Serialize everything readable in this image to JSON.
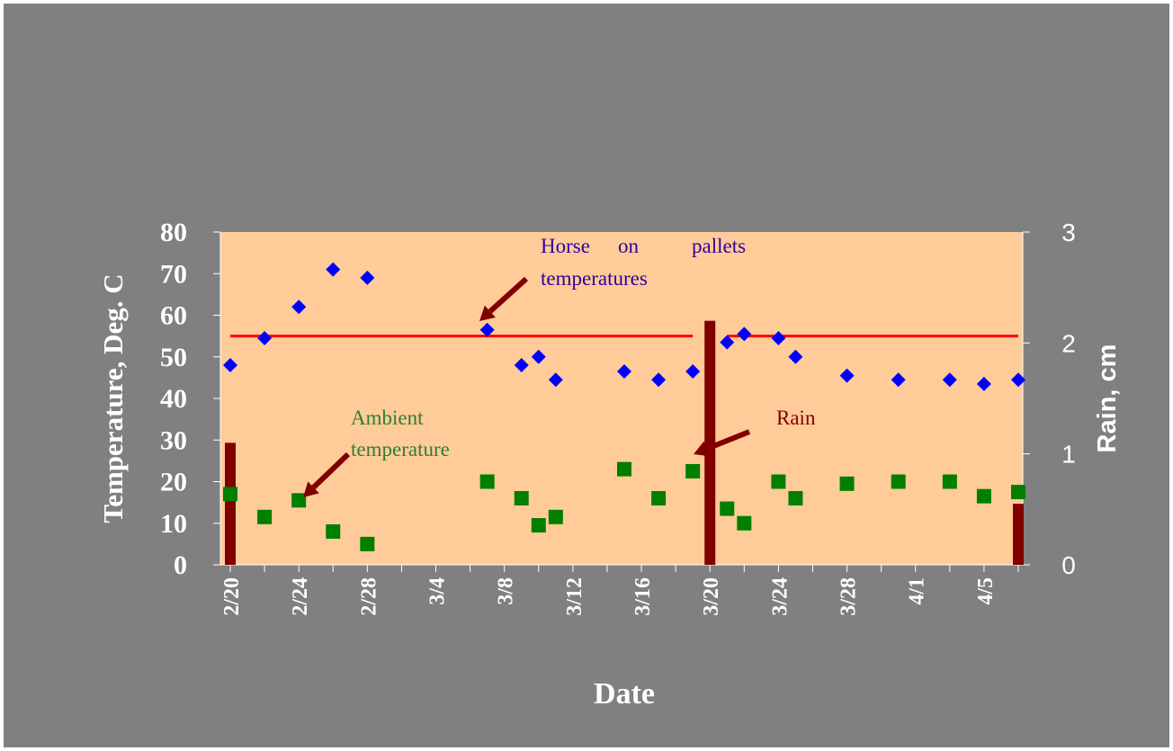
{
  "colors": {
    "background": "#808080",
    "plot_area": "#ffcc99",
    "horse_series": "#0000ff",
    "ambient_series": "#007f00",
    "rain_series": "#800000",
    "threshold_line": "#ff0000",
    "annotation_horse": "#330099",
    "annotation_ambient": "#2e7d32",
    "annotation_rain": "#800000",
    "arrow": "#800000"
  },
  "chart_data": {
    "type": "scatter",
    "xlabel": "Date",
    "ylabel": "Temperature, Deg. C",
    "y2label": "Rain, cm",
    "x_ticks": [
      "2/20",
      "2/24",
      "2/28",
      "3/4",
      "3/8",
      "3/12",
      "3/16",
      "3/20",
      "3/24",
      "3/28",
      "4/1",
      "4/5"
    ],
    "xlim": [
      "2/20",
      "4/7"
    ],
    "ylim": [
      0,
      80
    ],
    "y_ticks": [
      0,
      10,
      20,
      30,
      40,
      50,
      60,
      70,
      80
    ],
    "y2lim": [
      0,
      3
    ],
    "y2_ticks": [
      0,
      1,
      2,
      3
    ],
    "grid": false,
    "series": [
      {
        "name": "Horse on pallets temperatures",
        "marker": "diamond",
        "axis": "left",
        "points": [
          {
            "x": "2/20",
            "y": 48
          },
          {
            "x": "2/22",
            "y": 54.5
          },
          {
            "x": "2/24",
            "y": 62
          },
          {
            "x": "2/26",
            "y": 71
          },
          {
            "x": "2/28",
            "y": 69
          },
          {
            "x": "3/7",
            "y": 56.5
          },
          {
            "x": "3/9",
            "y": 48
          },
          {
            "x": "3/10",
            "y": 50
          },
          {
            "x": "3/11",
            "y": 44.5
          },
          {
            "x": "3/15",
            "y": 46.5
          },
          {
            "x": "3/17",
            "y": 44.5
          },
          {
            "x": "3/19",
            "y": 46.5
          },
          {
            "x": "3/21",
            "y": 53.5
          },
          {
            "x": "3/22",
            "y": 55.5
          },
          {
            "x": "3/24",
            "y": 54.5
          },
          {
            "x": "3/25",
            "y": 50
          },
          {
            "x": "3/28",
            "y": 45.5
          },
          {
            "x": "3/31",
            "y": 44.5
          },
          {
            "x": "4/3",
            "y": 44.5
          },
          {
            "x": "4/5",
            "y": 43.5
          },
          {
            "x": "4/7",
            "y": 44.5
          }
        ]
      },
      {
        "name": "Ambient temperature",
        "marker": "square",
        "axis": "left",
        "points": [
          {
            "x": "2/20",
            "y": 17
          },
          {
            "x": "2/22",
            "y": 11.5
          },
          {
            "x": "2/24",
            "y": 15.5
          },
          {
            "x": "2/26",
            "y": 8
          },
          {
            "x": "2/28",
            "y": 5
          },
          {
            "x": "3/7",
            "y": 20
          },
          {
            "x": "3/9",
            "y": 16
          },
          {
            "x": "3/10",
            "y": 9.5
          },
          {
            "x": "3/11",
            "y": 11.5
          },
          {
            "x": "3/15",
            "y": 23
          },
          {
            "x": "3/17",
            "y": 16
          },
          {
            "x": "3/19",
            "y": 22.5
          },
          {
            "x": "3/21",
            "y": 13.5
          },
          {
            "x": "3/22",
            "y": 10
          },
          {
            "x": "3/24",
            "y": 20
          },
          {
            "x": "3/25",
            "y": 16
          },
          {
            "x": "3/28",
            "y": 19.5
          },
          {
            "x": "3/31",
            "y": 20
          },
          {
            "x": "4/3",
            "y": 20
          },
          {
            "x": "4/5",
            "y": 16.5
          },
          {
            "x": "4/7",
            "y": 17.5
          }
        ]
      },
      {
        "name": "Rain",
        "marker": "bar",
        "axis": "right",
        "points": [
          {
            "x": "2/20",
            "y": 1.1
          },
          {
            "x": "3/20",
            "y": 2.2
          },
          {
            "x": "4/7",
            "y": 0.55
          }
        ]
      }
    ],
    "threshold": {
      "y": 55,
      "segments": [
        [
          "2/20",
          "3/19"
        ],
        [
          "3/21",
          "4/7"
        ]
      ]
    },
    "annotations": [
      {
        "key": "horse",
        "lines": [
          "Horse on pallets",
          "temperatures"
        ]
      },
      {
        "key": "ambient",
        "lines": [
          "Ambient",
          "temperature"
        ]
      },
      {
        "key": "rain",
        "lines": [
          "Rain"
        ]
      }
    ]
  }
}
